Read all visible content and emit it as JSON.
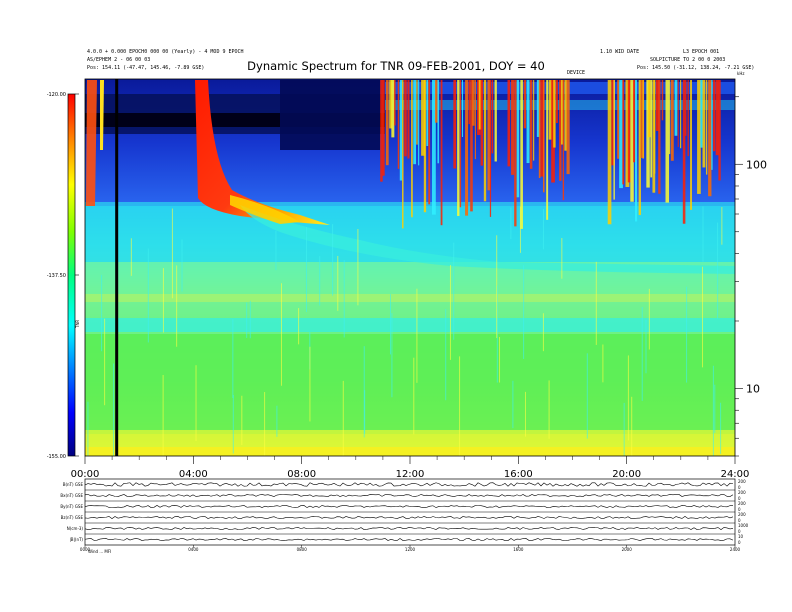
{
  "chart_data": {
    "type": "heatmap",
    "title": "Dynamic Spectrum for TNR 09-FEB-2001, DOY = 40",
    "header": {
      "left_line1": "4.0.0 + 0.000 EPOCH0 000 00 (Yearly) - 4 MOD 9 EPOCH",
      "left_line2": "AS/EPHEM 2 - 06 00 03",
      "left_line3": "Pos:   154.11 (-47.47, 145.46, -7.89 GSE)",
      "right_line1": "1.10 WID DATE",
      "right_line2": "L3 EPOCH 001",
      "right_line3": "SOLPICTURE TO 2 00 0 2003",
      "right_line4": "Pos:   145.50 (-31.12, 138.24, -7.21 GSE)",
      "mid_label": "DEVICE"
    },
    "colorbar": {
      "ticks": [
        "-120.00",
        "-137.50",
        "-155.00"
      ],
      "label": "TNR",
      "min": -155,
      "max": -120
    },
    "y_axis": {
      "ticks": [
        "100",
        "10"
      ],
      "unit": "kHz",
      "scale": "log",
      "range": [
        5,
        240
      ]
    },
    "x_axis": {
      "ticks": [
        "00:00",
        "04:00",
        "08:00",
        "12:00",
        "16:00",
        "20:00",
        "24:00"
      ],
      "range_hours": [
        0,
        24
      ]
    },
    "marker_time_hours": 1.17,
    "panels": [
      {
        "label": "B(nT) GSE",
        "right_ticks": [
          "200",
          "0"
        ]
      },
      {
        "label": "Bx(nT) GSE",
        "right_ticks": [
          "200",
          "0"
        ]
      },
      {
        "label": "By(nT) GSE",
        "right_ticks": [
          "200",
          "0"
        ]
      },
      {
        "label": "Bz(nT) GSE",
        "right_ticks": [
          "200",
          "0"
        ]
      },
      {
        "label": "N(cm-3)",
        "right_ticks": [
          "1000",
          "0"
        ]
      },
      {
        "label": "|B|(nT)",
        "right_ticks": [
          "10",
          "0"
        ]
      }
    ],
    "bottom_ticks": [
      "0000",
      "0400",
      "0800",
      "1200",
      "1600",
      "2000",
      "2400"
    ],
    "bottom_label": "Wind ... MFI"
  }
}
